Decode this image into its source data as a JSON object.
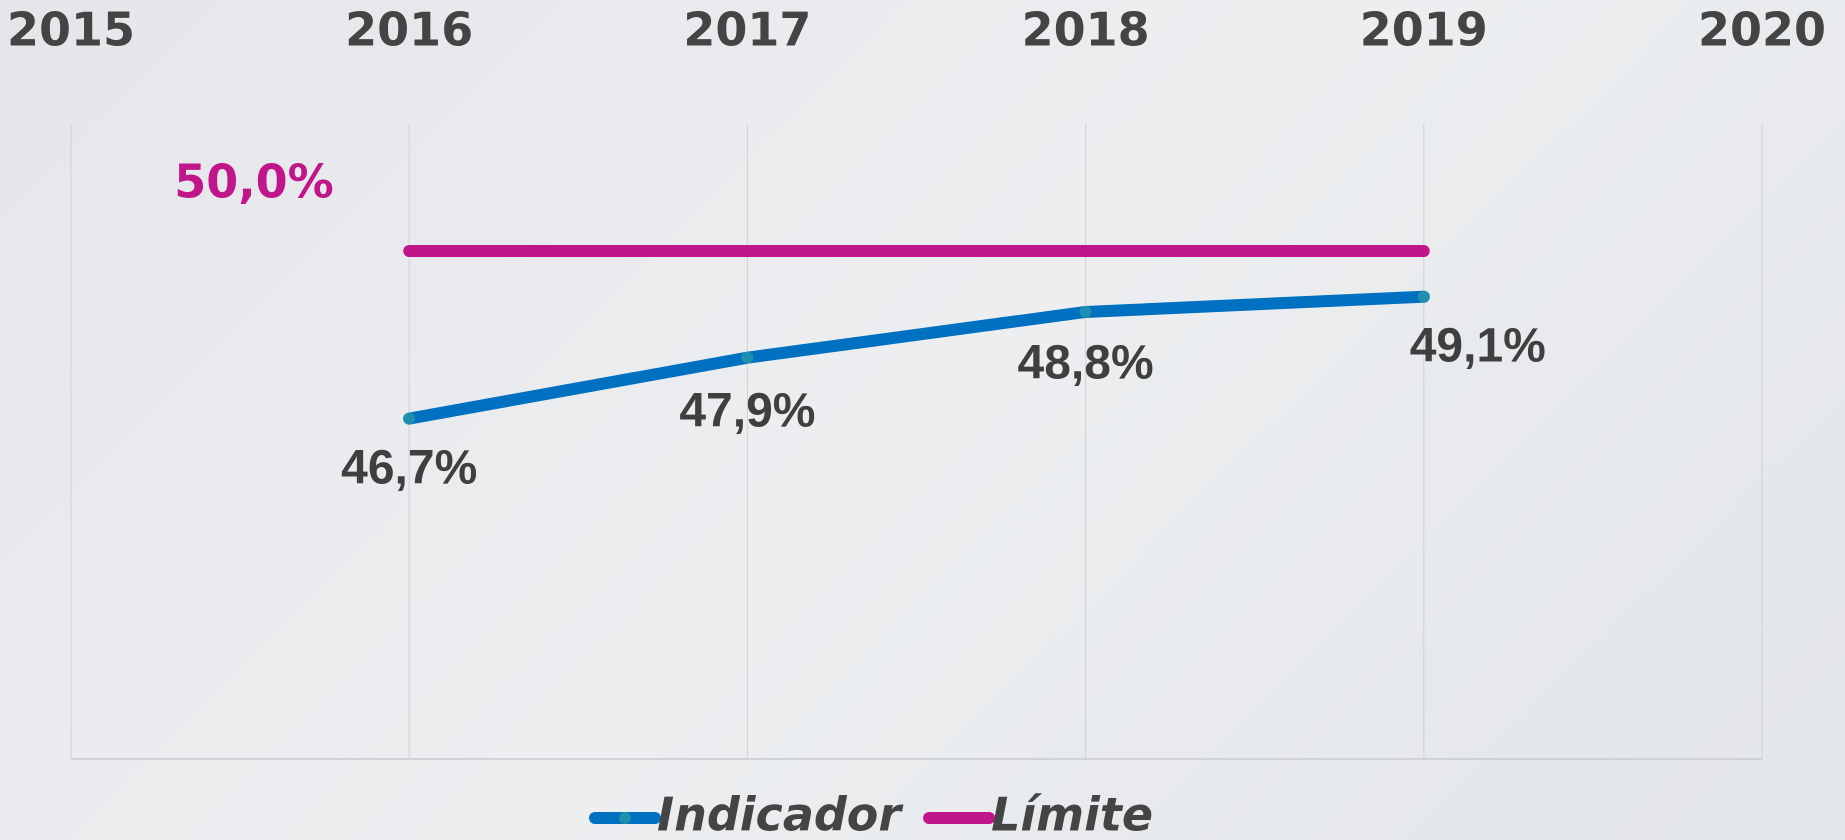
{
  "chart_data": {
    "type": "line",
    "categories": [
      "2015",
      "2016",
      "2017",
      "2018",
      "2019",
      "2020"
    ],
    "series": [
      {
        "name": "Indicador",
        "color": "#0070c0",
        "values": [
          null,
          46.7,
          47.9,
          48.8,
          49.1,
          null
        ],
        "value_labels": [
          null,
          "46,7%",
          "47,9%",
          "48,8%",
          "49,1%",
          null
        ]
      },
      {
        "name": "Límite",
        "color": "#c0168a",
        "values": [
          null,
          50,
          50,
          50,
          50,
          null
        ],
        "value_labels": [
          null,
          "50,0%",
          null,
          null,
          null,
          null
        ]
      }
    ],
    "ylim": [
      40,
      52.5
    ],
    "grid": true,
    "legend": "bottom"
  }
}
